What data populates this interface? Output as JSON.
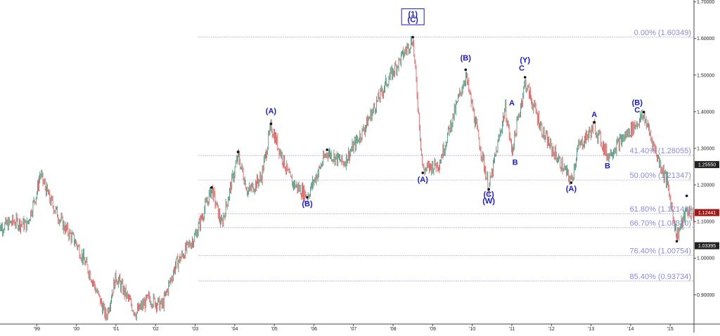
{
  "chart_data": {
    "type": "line",
    "style": "candlestick",
    "x_start": "1998-01",
    "x_end": "2015-08",
    "ylim": [
      0.82,
      1.705
    ],
    "colors": {
      "up": "#3a8a6a",
      "down": "#e05252",
      "fib": "#8a8ae6",
      "wave": "#1a1adb",
      "badge_current": "#a01818",
      "badge_other": "#222222"
    },
    "x_ticks": [
      {
        "x": "1999-01",
        "label": "'99"
      },
      {
        "x": "2000-01",
        "label": "'00"
      },
      {
        "x": "2001-01",
        "label": "'01"
      },
      {
        "x": "2002-01",
        "label": "'02"
      },
      {
        "x": "2003-01",
        "label": "'03"
      },
      {
        "x": "2004-01",
        "label": "'04"
      },
      {
        "x": "2005-01",
        "label": "'05"
      },
      {
        "x": "2006-01",
        "label": "'06"
      },
      {
        "x": "2007-01",
        "label": "'07"
      },
      {
        "x": "2008-01",
        "label": "'08"
      },
      {
        "x": "2009-01",
        "label": "'09"
      },
      {
        "x": "2010-01",
        "label": "'10"
      },
      {
        "x": "2011-01",
        "label": "'11"
      },
      {
        "x": "2012-01",
        "label": "'12"
      },
      {
        "x": "2013-01",
        "label": "'13"
      },
      {
        "x": "2014-01",
        "label": "'14"
      },
      {
        "x": "2015-01",
        "label": "'15"
      }
    ],
    "y_ticks": [
      {
        "y": 1.7,
        "label": "1.70000"
      },
      {
        "y": 1.6,
        "label": "1.60000"
      },
      {
        "y": 1.5,
        "label": "1.50000"
      },
      {
        "y": 1.4,
        "label": "1.40000"
      },
      {
        "y": 1.3,
        "label": "1.30000"
      },
      {
        "y": 1.2,
        "label": "1.20000"
      },
      {
        "y": 1.1,
        "label": "1.10000"
      },
      {
        "y": 1.0,
        "label": "1.00000"
      },
      {
        "y": 0.9,
        "label": "0.90000"
      }
    ],
    "price_badges": [
      {
        "y": 1.2555,
        "label": "1.25550",
        "current": false
      },
      {
        "y": 1.12441,
        "label": "1.12441",
        "current": true
      },
      {
        "y": 1.03395,
        "label": "1.03395",
        "current": false
      }
    ],
    "fib_levels": [
      {
        "y": 1.60349,
        "label": "0.00% (1.60349)",
        "x_from": "2003-02"
      },
      {
        "y": 1.28055,
        "label": "41.40% (1.28055)",
        "x_from": "2003-02"
      },
      {
        "y": 1.21347,
        "label": "50.00% (1.21347)",
        "x_from": "2003-02"
      },
      {
        "y": 1.12143,
        "label": "61.80% (1.12143)",
        "x_from": "2003-02"
      },
      {
        "y": 1.0832,
        "label": "66.70% (1.08320)",
        "x_from": "2003-02"
      },
      {
        "y": 1.00754,
        "label": "76.40% (1.00754)",
        "x_from": "2003-02"
      },
      {
        "y": 0.93734,
        "label": "85.40% (0.93734)",
        "x_from": "2003-02"
      }
    ],
    "pivots": [
      {
        "x": "2003-06",
        "y": 1.193
      },
      {
        "x": "2004-02",
        "y": 1.29
      },
      {
        "x": "2004-12",
        "y": 1.367
      },
      {
        "x": "2005-11",
        "y": 1.166
      },
      {
        "x": "2006-05",
        "y": 1.296
      },
      {
        "x": "2008-07",
        "y": 1.6035
      },
      {
        "x": "2008-10",
        "y": 1.233
      },
      {
        "x": "2009-11",
        "y": 1.5145
      },
      {
        "x": "2010-06",
        "y": 1.188
      },
      {
        "x": "2011-05",
        "y": 1.494
      },
      {
        "x": "2012-07",
        "y": 1.206
      },
      {
        "x": "2013-02",
        "y": 1.371
      },
      {
        "x": "2014-05",
        "y": 1.399
      },
      {
        "x": "2015-03",
        "y": 1.046
      },
      {
        "x": "2015-06",
        "y": 1.17
      }
    ],
    "waves": [
      {
        "x": "2008-07",
        "y": 1.66,
        "label": "(1)",
        "boxed": true
      },
      {
        "x": "2008-07",
        "y": 1.645,
        "label": "(C)",
        "boxed": true
      },
      {
        "x": "2004-12",
        "y": 1.395,
        "label": "(A)"
      },
      {
        "x": "2005-11",
        "y": 1.142,
        "label": "(B)"
      },
      {
        "x": "2008-10",
        "y": 1.208,
        "label": "(A)"
      },
      {
        "x": "2009-11",
        "y": 1.54,
        "label": "(B)"
      },
      {
        "x": "2010-06",
        "y": 1.167,
        "label": "(C)"
      },
      {
        "x": "2010-06",
        "y": 1.149,
        "label": "(W)"
      },
      {
        "x": "2011-05",
        "y": 1.534,
        "label": "(Y)"
      },
      {
        "x": "2011-04",
        "y": 1.512,
        "label": "C"
      },
      {
        "x": "2011-01",
        "y": 1.417,
        "label": "A"
      },
      {
        "x": "2011-02",
        "y": 1.255,
        "label": "B"
      },
      {
        "x": "2012-07",
        "y": 1.183,
        "label": "(A)"
      },
      {
        "x": "2013-02",
        "y": 1.385,
        "label": "A"
      },
      {
        "x": "2013-06",
        "y": 1.245,
        "label": "B"
      },
      {
        "x": "2014-03",
        "y": 1.418,
        "label": "(B)"
      },
      {
        "x": "2014-03",
        "y": 1.398,
        "label": "C"
      }
    ],
    "anchors": [
      {
        "x": "1998-01",
        "y": 1.08
      },
      {
        "x": "1998-06",
        "y": 1.1
      },
      {
        "x": "1998-10",
        "y": 1.09
      },
      {
        "x": "1999-01",
        "y": 1.18
      },
      {
        "x": "1999-02",
        "y": 1.23
      },
      {
        "x": "1999-05",
        "y": 1.16
      },
      {
        "x": "1999-09",
        "y": 1.09
      },
      {
        "x": "2000-01",
        "y": 1.04
      },
      {
        "x": "2000-05",
        "y": 0.96
      },
      {
        "x": "2000-10",
        "y": 0.84
      },
      {
        "x": "2001-01",
        "y": 0.95
      },
      {
        "x": "2001-07",
        "y": 0.85
      },
      {
        "x": "2001-11",
        "y": 0.89
      },
      {
        "x": "2002-03",
        "y": 0.87
      },
      {
        "x": "2002-07",
        "y": 0.98
      },
      {
        "x": "2003-01",
        "y": 1.06
      },
      {
        "x": "2003-06",
        "y": 1.19
      },
      {
        "x": "2003-09",
        "y": 1.09
      },
      {
        "x": "2004-02",
        "y": 1.28
      },
      {
        "x": "2004-05",
        "y": 1.18
      },
      {
        "x": "2004-09",
        "y": 1.22
      },
      {
        "x": "2004-12",
        "y": 1.36
      },
      {
        "x": "2005-06",
        "y": 1.21
      },
      {
        "x": "2005-11",
        "y": 1.17
      },
      {
        "x": "2006-05",
        "y": 1.29
      },
      {
        "x": "2006-10",
        "y": 1.26
      },
      {
        "x": "2007-04",
        "y": 1.35
      },
      {
        "x": "2007-11",
        "y": 1.48
      },
      {
        "x": "2008-07",
        "y": 1.6
      },
      {
        "x": "2008-10",
        "y": 1.24
      },
      {
        "x": "2009-03",
        "y": 1.26
      },
      {
        "x": "2009-11",
        "y": 1.5
      },
      {
        "x": "2010-06",
        "y": 1.19
      },
      {
        "x": "2010-11",
        "y": 1.41
      },
      {
        "x": "2011-01",
        "y": 1.29
      },
      {
        "x": "2011-05",
        "y": 1.48
      },
      {
        "x": "2011-11",
        "y": 1.33
      },
      {
        "x": "2012-07",
        "y": 1.21
      },
      {
        "x": "2012-09",
        "y": 1.3
      },
      {
        "x": "2013-02",
        "y": 1.36
      },
      {
        "x": "2013-06",
        "y": 1.28
      },
      {
        "x": "2014-05",
        "y": 1.39
      },
      {
        "x": "2014-09",
        "y": 1.28
      },
      {
        "x": "2014-12",
        "y": 1.21
      },
      {
        "x": "2015-03",
        "y": 1.06
      },
      {
        "x": "2015-06",
        "y": 1.13
      },
      {
        "x": "2015-08",
        "y": 1.12
      }
    ]
  }
}
